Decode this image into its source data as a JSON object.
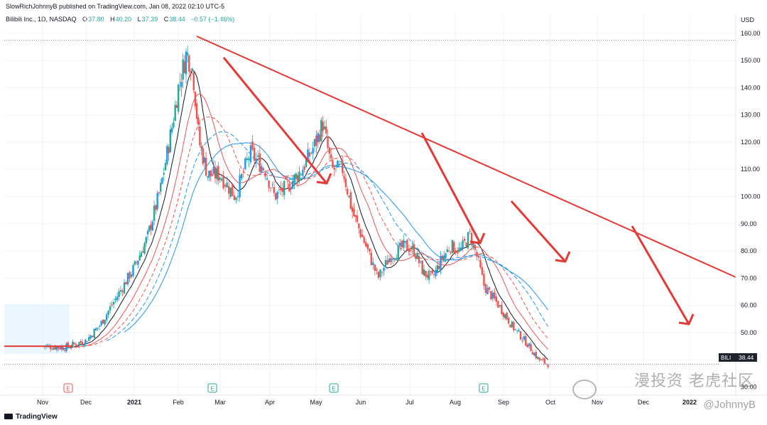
{
  "header": {
    "publish_line": "SlowRichJohnnyB published on TradingView.com, Jan 08, 2022 02:10 UTC-5",
    "symbol": "Bilibili Inc., 1D, NASDAQ",
    "ohlc": [
      {
        "k": "O",
        "v": "37.80"
      },
      {
        "k": "H",
        "v": "40.20"
      },
      {
        "k": "L",
        "v": "37.39"
      },
      {
        "k": "C",
        "v": "38.44"
      }
    ],
    "change": "−0.57 (−1.46%)"
  },
  "price_axis": {
    "unit": "USD",
    "labels": [
      "160.00",
      "150.00",
      "140.00",
      "130.00",
      "120.00",
      "110.00",
      "100.00",
      "90.00",
      "80.00",
      "70.00",
      "60.00",
      "50.00",
      "40.00",
      "30.00"
    ],
    "last_price_label": "38.44",
    "ticker_label": "BILI"
  },
  "footer": {
    "logo": "TradingView",
    "watermark": "漫投资 老虎社区",
    "watermark_sub": "@JohnnyB"
  },
  "colors": {
    "up": "#26a69a",
    "up_blue": "#2196f3",
    "down": "#ef5350",
    "trend": "#e53935",
    "ma_black": "#131722",
    "ma_red": "#ef5350",
    "ma_blue": "#2196f3"
  },
  "chart_data": {
    "type": "candlestick",
    "title": "",
    "ylabel": "USD",
    "ylim": [
      27,
      167
    ],
    "x_ticks": [
      "Nov",
      "Dec",
      "2021",
      "Feb",
      "Mar",
      "Apr",
      "May",
      "Jun",
      "Jul",
      "Aug",
      "Sep",
      "Oct",
      "Nov",
      "Dec",
      "2022"
    ],
    "earnings_markers": [
      "Dec 2020",
      "Mar 2021",
      "May 2021",
      "Aug 2021"
    ],
    "earnings_label": "E",
    "close_path": [
      {
        "t": 0.0,
        "v": 45
      },
      {
        "t": 0.5,
        "v": 44.5
      },
      {
        "t": 1.0,
        "v": 47
      },
      {
        "t": 1.3,
        "v": 53
      },
      {
        "t": 1.6,
        "v": 62
      },
      {
        "t": 2.0,
        "v": 74
      },
      {
        "t": 2.3,
        "v": 85
      },
      {
        "t": 2.6,
        "v": 103
      },
      {
        "t": 2.85,
        "v": 125
      },
      {
        "t": 3.0,
        "v": 140
      },
      {
        "t": 3.2,
        "v": 153
      },
      {
        "t": 3.35,
        "v": 146
      },
      {
        "t": 3.5,
        "v": 120
      },
      {
        "t": 3.7,
        "v": 108
      },
      {
        "t": 4.0,
        "v": 108
      },
      {
        "t": 4.3,
        "v": 100
      },
      {
        "t": 4.6,
        "v": 116
      },
      {
        "t": 4.9,
        "v": 110
      },
      {
        "t": 5.1,
        "v": 100
      },
      {
        "t": 5.4,
        "v": 104
      },
      {
        "t": 5.7,
        "v": 110
      },
      {
        "t": 6.0,
        "v": 120
      },
      {
        "t": 6.15,
        "v": 127
      },
      {
        "t": 6.35,
        "v": 110
      },
      {
        "t": 6.6,
        "v": 110
      },
      {
        "t": 6.8,
        "v": 95
      },
      {
        "t": 7.1,
        "v": 82
      },
      {
        "t": 7.35,
        "v": 70
      },
      {
        "t": 7.6,
        "v": 78
      },
      {
        "t": 7.9,
        "v": 82
      },
      {
        "t": 8.1,
        "v": 80
      },
      {
        "t": 8.3,
        "v": 72
      },
      {
        "t": 8.5,
        "v": 70
      },
      {
        "t": 8.7,
        "v": 77
      },
      {
        "t": 8.9,
        "v": 82
      },
      {
        "t": 9.1,
        "v": 80
      },
      {
        "t": 9.3,
        "v": 86
      },
      {
        "t": 9.45,
        "v": 78
      },
      {
        "t": 9.6,
        "v": 67
      },
      {
        "t": 9.9,
        "v": 60
      },
      {
        "t": 10.2,
        "v": 52
      },
      {
        "t": 10.5,
        "v": 46
      },
      {
        "t": 10.75,
        "v": 40
      },
      {
        "t": 10.95,
        "v": 38.44
      }
    ],
    "last": 38.44,
    "moving_averages": [
      "black",
      "red solid",
      "red dashed",
      "blue solid",
      "blue dashed"
    ],
    "trend_lines": [
      "long-term descending resistance",
      "arrows marking successive declines"
    ]
  }
}
